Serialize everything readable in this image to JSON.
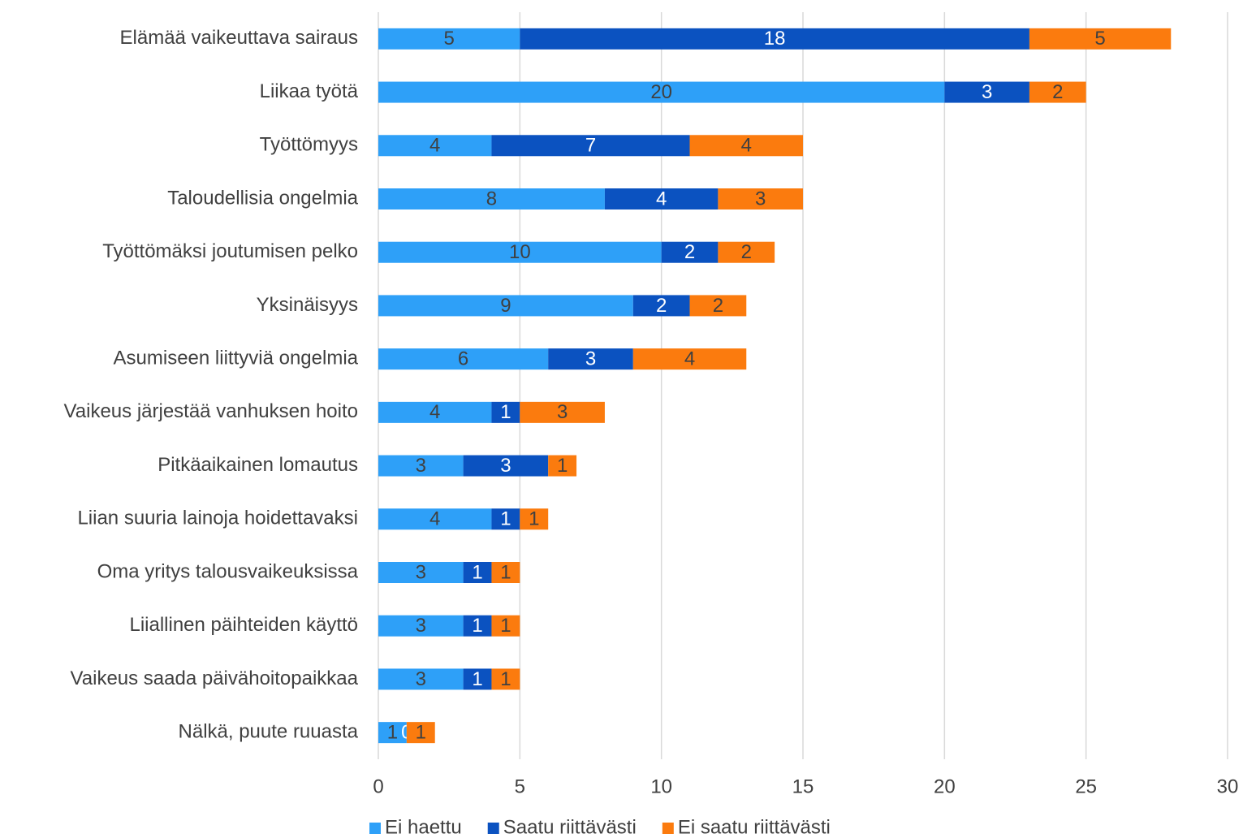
{
  "chart_data": {
    "type": "stacked-bar-horizontal",
    "categories": [
      "Elämää vaikeuttava sairaus",
      "Liikaa työtä",
      "Työttömyys",
      "Taloudellisia ongelmia",
      "Työttömäksi joutumisen pelko",
      "Yksinäisyys",
      "Asumiseen liittyviä ongelmia",
      "Vaikeus järjestää vanhuksen hoito",
      "Pitkäaikainen lomautus",
      "Liian suuria lainoja hoidettavaksi",
      "Oma yritys talousvaikeuksissa",
      "Liiallinen päihteiden käyttö",
      "Vaikeus saada päivähoitopaikkaa",
      "Nälkä, puute ruuasta"
    ],
    "series": [
      {
        "name": "Ei haettu",
        "color": "#2ea0f8",
        "values": [
          5,
          20,
          4,
          8,
          10,
          9,
          6,
          4,
          3,
          4,
          3,
          3,
          3,
          1
        ]
      },
      {
        "name": "Saatu riittävästi",
        "color": "#0b52c0",
        "values": [
          18,
          3,
          7,
          4,
          2,
          2,
          3,
          1,
          3,
          1,
          1,
          1,
          1,
          0
        ]
      },
      {
        "name": "Ei saatu riittävästi",
        "color": "#fb7b0e",
        "values": [
          5,
          2,
          4,
          3,
          2,
          2,
          4,
          3,
          1,
          1,
          1,
          1,
          1,
          1
        ]
      }
    ],
    "xlim": [
      0,
      30
    ],
    "xticks": [
      0,
      5,
      10,
      15,
      20,
      25,
      30
    ],
    "grid": true,
    "legend": "bottom"
  }
}
